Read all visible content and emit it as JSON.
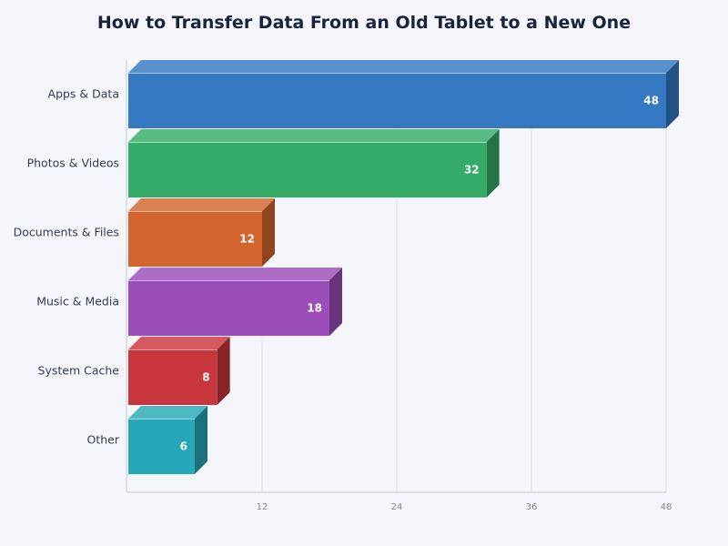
{
  "chart_data": {
    "type": "bar",
    "orientation": "horizontal",
    "title": "How to Transfer Data From an Old Tablet to a New One",
    "xlabel": "",
    "ylabel": "",
    "categories": [
      "Apps & Data",
      "Photos & Videos",
      "Documents & Files",
      "Music & Media",
      "System Cache",
      "Other"
    ],
    "values": [
      48,
      32,
      12,
      18,
      8,
      6
    ],
    "xlim": [
      0,
      48
    ],
    "xticks": [
      12,
      24,
      36,
      48
    ],
    "grid": true,
    "data_labels": true,
    "colors": [
      "#3579c2",
      "#35ab69",
      "#d2652d",
      "#9b4db9",
      "#c8363d",
      "#27a8b8"
    ]
  }
}
